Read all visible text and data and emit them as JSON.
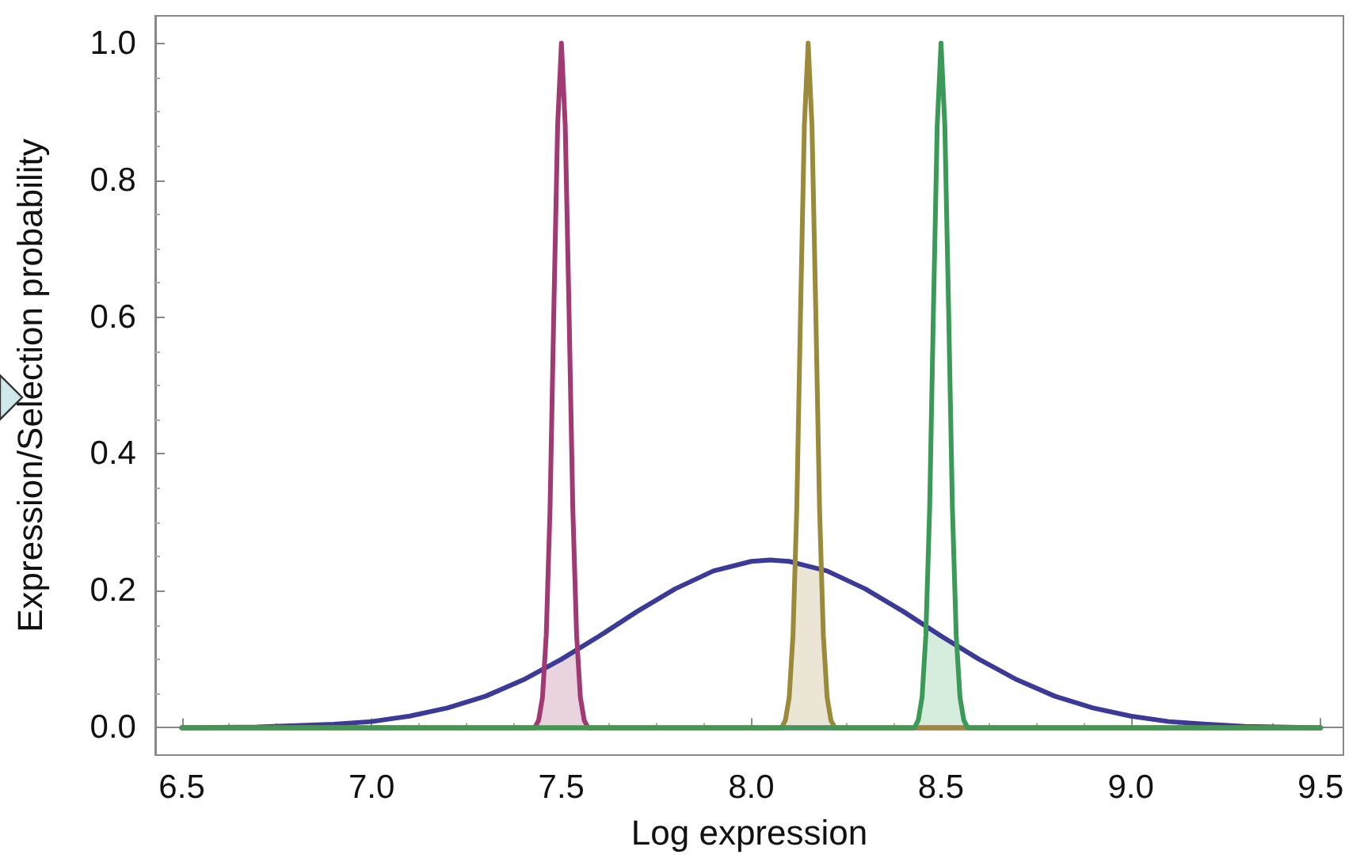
{
  "chart_data": {
    "type": "line",
    "xlabel": "Log expression",
    "ylabel": "Expression/Selection probability",
    "xlim": [
      6.43,
      9.56
    ],
    "ylim": [
      -0.04,
      1.04
    ],
    "xticks": [
      6.5,
      {
        "value": 7,
        "label": "7.0"
      },
      7.5,
      {
        "value": 8,
        "label": "8.0"
      },
      8.5,
      {
        "value": 9,
        "label": "9.0"
      },
      9.5
    ],
    "yticks": [
      {
        "value": 0,
        "label": "0.0"
      },
      0.2,
      0.4,
      0.6,
      0.8,
      {
        "value": 1,
        "label": "1.0"
      }
    ],
    "marker": "none",
    "line_style": "solid",
    "series": [
      {
        "type": "area",
        "color": "#e8d3df",
        "x": [
          7.44,
          7.45,
          7.46,
          7.48,
          7.5,
          7.52,
          7.54,
          7.55,
          7.56
        ],
        "values": [
          0.011,
          0.044,
          0.089,
          0.094,
          0.1,
          0.106,
          0.112,
          0.044,
          0.011
        ]
      },
      {
        "type": "area",
        "color": "#ebe5d5",
        "x": [
          8.09,
          8.1,
          8.11,
          8.12,
          8.15,
          8.18,
          8.19,
          8.2,
          8.21
        ],
        "values": [
          0.011,
          0.044,
          0.135,
          0.24,
          0.238,
          0.232,
          0.135,
          0.044,
          0.011
        ]
      },
      {
        "type": "area",
        "color": "#d6ecdd",
        "x": [
          8.44,
          8.45,
          8.46,
          8.47,
          8.5,
          8.53,
          8.54,
          8.55,
          8.56
        ],
        "values": [
          0.011,
          0.044,
          0.135,
          0.145,
          0.134,
          0.123,
          0.119,
          0.044,
          0.011
        ]
      },
      {
        "color": "#3b3a98",
        "x": [
          6.5,
          6.7,
          6.9,
          7.0,
          7.1,
          7.2,
          7.3,
          7.4,
          7.5,
          7.6,
          7.7,
          7.8,
          7.9,
          8.0,
          8.05,
          8.1,
          8.2,
          8.3,
          8.4,
          8.5,
          8.6,
          8.7,
          8.8,
          8.9,
          9.0,
          9.1,
          9.2,
          9.3,
          9.5
        ],
        "values": [
          0,
          0.001,
          0.005,
          0.009,
          0.017,
          0.029,
          0.046,
          0.07,
          0.1,
          0.134,
          0.17,
          0.203,
          0.229,
          0.243,
          0.245,
          0.243,
          0.229,
          0.203,
          0.17,
          0.134,
          0.1,
          0.07,
          0.046,
          0.029,
          0.017,
          0.009,
          0.005,
          0.002,
          0
        ]
      },
      {
        "color": "#a13a72",
        "x": [
          6.5,
          7.43,
          7.44,
          7.45,
          7.46,
          7.47,
          7.48,
          7.49,
          7.5,
          7.51,
          7.52,
          7.53,
          7.54,
          7.55,
          7.56,
          7.57,
          9.5
        ],
        "values": [
          0,
          0,
          0.011,
          0.044,
          0.135,
          0.32,
          0.61,
          0.88,
          1.0,
          0.88,
          0.61,
          0.32,
          0.135,
          0.044,
          0.011,
          0,
          0
        ]
      },
      {
        "color": "#9a8a3a",
        "x": [
          6.5,
          8.08,
          8.09,
          8.1,
          8.11,
          8.12,
          8.13,
          8.14,
          8.15,
          8.16,
          8.17,
          8.18,
          8.19,
          8.2,
          8.21,
          8.22,
          9.5
        ],
        "values": [
          0,
          0,
          0.011,
          0.044,
          0.135,
          0.32,
          0.61,
          0.88,
          1.0,
          0.88,
          0.61,
          0.32,
          0.135,
          0.044,
          0.011,
          0,
          0
        ]
      },
      {
        "color": "#3b9a58",
        "x": [
          6.5,
          8.43,
          8.44,
          8.45,
          8.46,
          8.47,
          8.48,
          8.49,
          8.5,
          8.51,
          8.52,
          8.53,
          8.54,
          8.55,
          8.56,
          8.57,
          9.5
        ],
        "values": [
          0,
          0,
          0.011,
          0.044,
          0.135,
          0.32,
          0.61,
          0.88,
          1.0,
          0.88,
          0.61,
          0.32,
          0.135,
          0.044,
          0.011,
          0,
          0
        ]
      }
    ]
  }
}
